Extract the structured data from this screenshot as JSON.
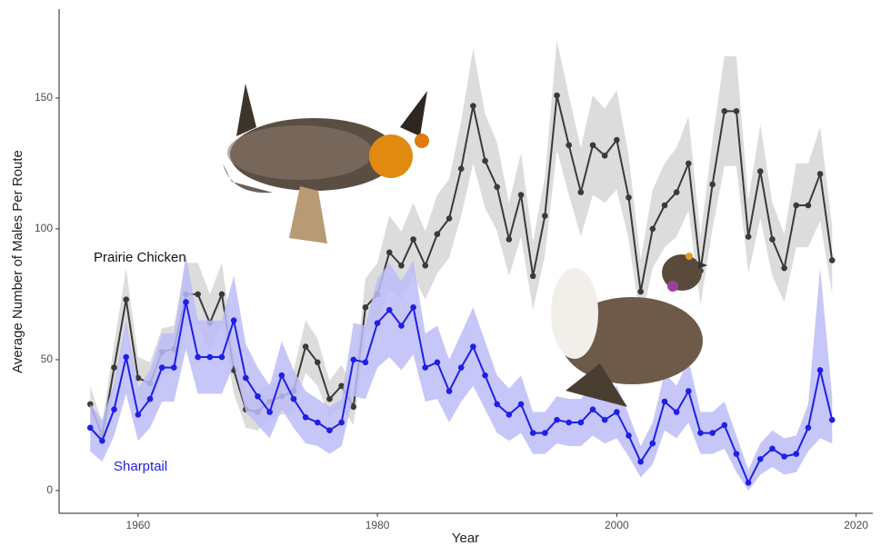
{
  "chart_data": {
    "type": "line",
    "xlabel": "Year",
    "ylabel": "Average Number of Males Per Route",
    "x": [
      1956,
      1957,
      1958,
      1959,
      1960,
      1961,
      1962,
      1963,
      1964,
      1965,
      1966,
      1967,
      1968,
      1969,
      1970,
      1971,
      1972,
      1973,
      1974,
      1975,
      1976,
      1977,
      1978,
      1979,
      1980,
      1981,
      1982,
      1983,
      1984,
      1985,
      1986,
      1987,
      1988,
      1989,
      1990,
      1991,
      1992,
      1993,
      1994,
      1995,
      1996,
      1997,
      1998,
      1999,
      2000,
      2001,
      2002,
      2003,
      2004,
      2005,
      2006,
      2007,
      2008,
      2009,
      2010,
      2011,
      2012,
      2013,
      2014,
      2015,
      2016,
      2017,
      2018
    ],
    "xlim": [
      1953.4,
      2021.4
    ],
    "xticks": [
      1960,
      1980,
      2000,
      2020
    ],
    "ylim": [
      -8.7,
      184
    ],
    "yticks": [
      0,
      50,
      100,
      150
    ],
    "series": [
      {
        "name": "Prairie Chicken",
        "color": "#3a3a3a",
        "band_color": "#d6d6d6",
        "values": [
          33,
          21,
          47,
          73,
          43,
          41,
          53,
          54,
          75,
          75,
          64,
          75,
          46,
          31,
          30,
          34,
          36,
          38,
          55,
          49,
          35,
          40,
          32,
          70,
          75,
          91,
          86,
          96,
          86,
          98,
          104,
          123,
          147,
          126,
          116,
          96,
          113,
          82,
          105,
          151,
          132,
          114,
          132,
          128,
          134,
          112,
          76,
          100,
          109,
          114,
          125,
          84,
          117,
          145,
          145,
          97,
          122,
          96,
          85,
          109,
          109,
          121,
          88
        ],
        "lower": [
          26,
          16,
          38,
          61,
          35,
          33,
          44,
          45,
          63,
          63,
          53,
          63,
          37,
          24,
          23,
          27,
          29,
          30,
          45,
          40,
          28,
          32,
          25,
          59,
          63,
          77,
          73,
          82,
          73,
          83,
          89,
          105,
          125,
          108,
          99,
          82,
          97,
          69,
          90,
          130,
          113,
          97,
          113,
          110,
          115,
          96,
          64,
          85,
          93,
          97,
          107,
          71,
          100,
          124,
          124,
          83,
          104,
          82,
          72,
          93,
          93,
          103,
          75
        ],
        "upper": [
          40,
          26,
          56,
          85,
          51,
          49,
          62,
          63,
          87,
          87,
          75,
          87,
          55,
          38,
          37,
          41,
          43,
          46,
          65,
          58,
          42,
          48,
          39,
          81,
          87,
          105,
          99,
          110,
          99,
          113,
          119,
          141,
          169,
          144,
          133,
          110,
          129,
          95,
          120,
          172,
          151,
          131,
          151,
          146,
          153,
          128,
          88,
          115,
          125,
          131,
          143,
          97,
          134,
          166,
          166,
          111,
          140,
          110,
          98,
          125,
          125,
          139,
          101
        ]
      },
      {
        "name": "Sharptail",
        "color": "#1f1fe6",
        "band_color": "#bcbcf7",
        "values": [
          24,
          19,
          31,
          51,
          29,
          35,
          47,
          47,
          72,
          51,
          51,
          51,
          65,
          43,
          36,
          30,
          44,
          35,
          28,
          26,
          23,
          26,
          50,
          49,
          64,
          69,
          63,
          70,
          47,
          49,
          38,
          47,
          55,
          44,
          33,
          29,
          33,
          22,
          22,
          27,
          26,
          26,
          31,
          27,
          30,
          21,
          11,
          18,
          34,
          30,
          38,
          22,
          22,
          25,
          14,
          3,
          12,
          16,
          13,
          14,
          24,
          46,
          27
        ],
        "lower": [
          15,
          11,
          21,
          37,
          19,
          24,
          34,
          34,
          54,
          37,
          37,
          37,
          48,
          30,
          25,
          20,
          31,
          24,
          18,
          17,
          14,
          17,
          36,
          35,
          47,
          51,
          46,
          52,
          34,
          35,
          26,
          34,
          40,
          31,
          22,
          19,
          22,
          14,
          14,
          18,
          17,
          17,
          21,
          18,
          20,
          13,
          5,
          10,
          23,
          20,
          26,
          14,
          14,
          16,
          7,
          0,
          6,
          9,
          6,
          7,
          15,
          20,
          18
        ],
        "upper": [
          33,
          27,
          41,
          65,
          39,
          46,
          60,
          60,
          90,
          65,
          65,
          65,
          82,
          56,
          47,
          40,
          57,
          46,
          38,
          35,
          32,
          35,
          64,
          63,
          81,
          87,
          80,
          88,
          60,
          63,
          50,
          60,
          70,
          57,
          44,
          39,
          44,
          30,
          30,
          36,
          35,
          35,
          41,
          36,
          40,
          29,
          17,
          26,
          45,
          40,
          50,
          30,
          30,
          34,
          21,
          8,
          18,
          23,
          20,
          21,
          33,
          85,
          36
        ]
      }
    ]
  }
}
